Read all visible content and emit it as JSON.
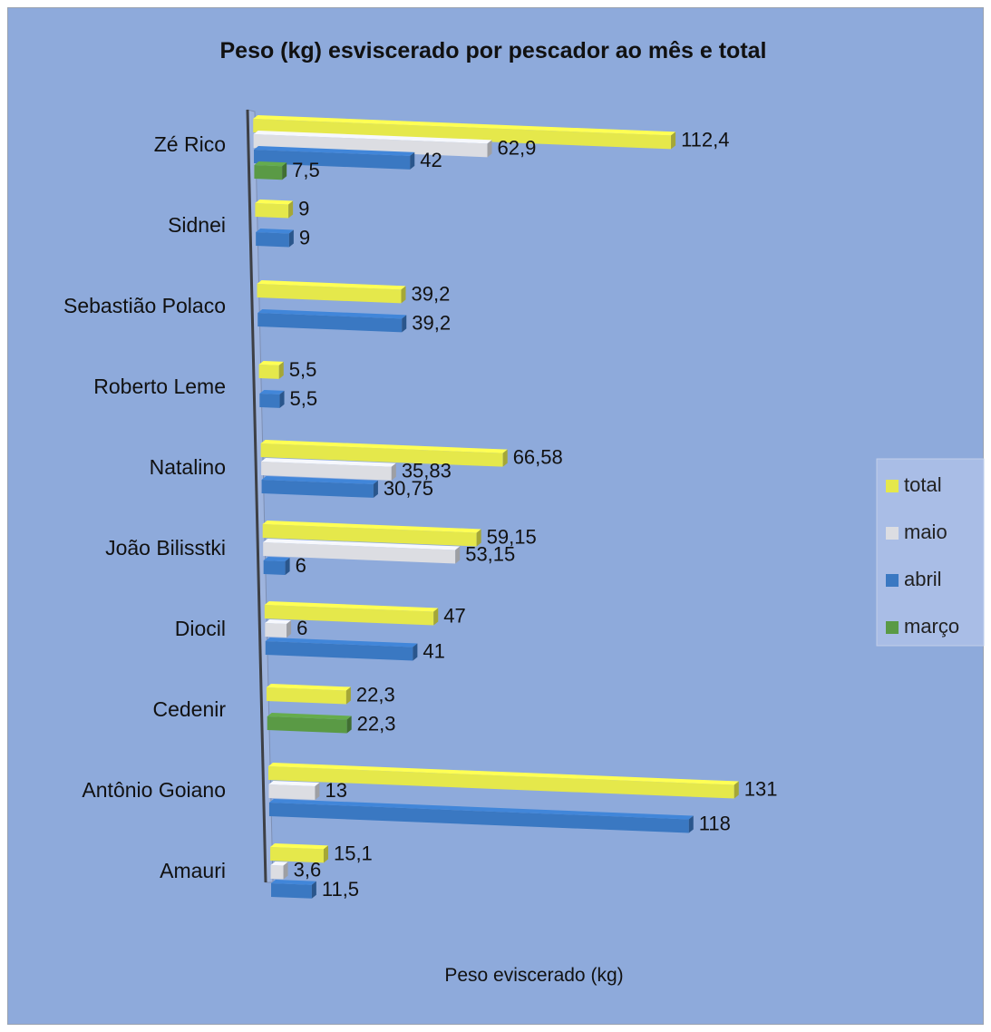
{
  "chart_data": {
    "type": "bar",
    "orientation": "horizontal",
    "title": "Peso (kg) esviscerado por pescador ao mês e total",
    "xlabel": "Peso eviscerado (kg)",
    "ylabel": "",
    "xlim": [
      0,
      131
    ],
    "grid": false,
    "legend_position": "right",
    "categories": [
      "Zé Rico",
      "Sidnei",
      "Sebastião Polaco",
      "Roberto Leme",
      "Natalino",
      "João Bilisstki",
      "Diocil",
      "Cedenir",
      "Antônio Goiano",
      "Amauri"
    ],
    "series": [
      {
        "name": "total",
        "color": "#e5e84b",
        "values": [
          112.4,
          9,
          39.2,
          5.5,
          66.58,
          59.15,
          47,
          22.3,
          131,
          15.1
        ],
        "labels": [
          "112,4",
          "9",
          "39,2",
          "5,5",
          "66,58",
          "59,15",
          "47",
          "22,3",
          "131",
          "15,1"
        ]
      },
      {
        "name": "maio",
        "color": "#dcdde2",
        "values": [
          62.9,
          null,
          null,
          null,
          35.83,
          53.15,
          6,
          null,
          13,
          3.6
        ],
        "labels": [
          "62,9",
          "",
          "",
          "",
          "35,83",
          "53,15",
          "6",
          "",
          "13",
          "3,6"
        ]
      },
      {
        "name": "abril",
        "color": "#3a78c2",
        "values": [
          42,
          9,
          39.2,
          5.5,
          30.75,
          6,
          41,
          null,
          118,
          11.5
        ],
        "labels": [
          "42",
          "9",
          "39,2",
          "5,5",
          "30,75",
          "6",
          "41",
          "",
          "118",
          "11,5"
        ]
      },
      {
        "name": "março",
        "color": "#5a9a45",
        "values": [
          7.5,
          null,
          null,
          null,
          null,
          null,
          null,
          22.3,
          null,
          null
        ],
        "labels": [
          "7,5",
          "",
          "",
          "",
          "",
          "",
          "",
          "22,3",
          "",
          ""
        ]
      }
    ]
  }
}
